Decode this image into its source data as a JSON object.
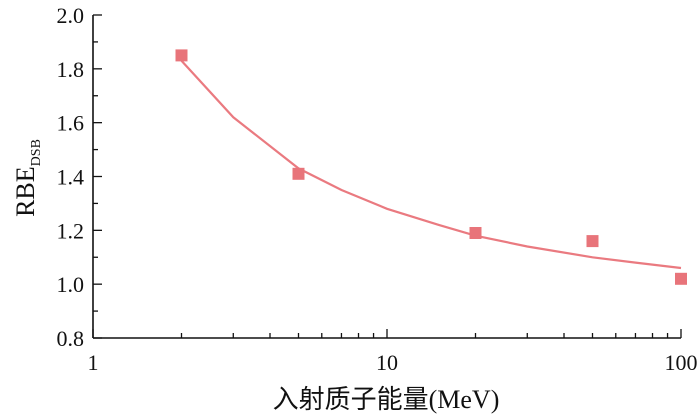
{
  "chart_data": {
    "type": "scatter",
    "title": "",
    "xlabel": "入射质子能量(MeV)",
    "ylabel": "RBE",
    "ylabel_subscript": "DSB",
    "xscale": "log",
    "xlim": [
      1,
      100
    ],
    "ylim": [
      0.8,
      2.0
    ],
    "x_ticks": [
      1,
      10,
      100
    ],
    "x_tick_labels": [
      "1",
      "10",
      "100"
    ],
    "y_ticks": [
      0.8,
      1.0,
      1.2,
      1.4,
      1.6,
      1.8,
      2.0
    ],
    "y_tick_labels": [
      "0.8",
      "1.0",
      "1.2",
      "1.4",
      "1.6",
      "1.8",
      "2.0"
    ],
    "grid": false,
    "series": [
      {
        "marker": "square",
        "color": "#e8747a",
        "points": [
          {
            "x": 2,
            "y": 1.85
          },
          {
            "x": 5,
            "y": 1.41
          },
          {
            "x": 20,
            "y": 1.19
          },
          {
            "x": 50,
            "y": 1.16
          },
          {
            "x": 100,
            "y": 1.02
          }
        ]
      }
    ],
    "fit_curve": {
      "color": "#ea7a80",
      "x": [
        2,
        3,
        5,
        7,
        10,
        15,
        20,
        30,
        50,
        70,
        100
      ],
      "y": [
        1.83,
        1.62,
        1.43,
        1.35,
        1.28,
        1.22,
        1.18,
        1.14,
        1.1,
        1.08,
        1.06
      ]
    }
  }
}
